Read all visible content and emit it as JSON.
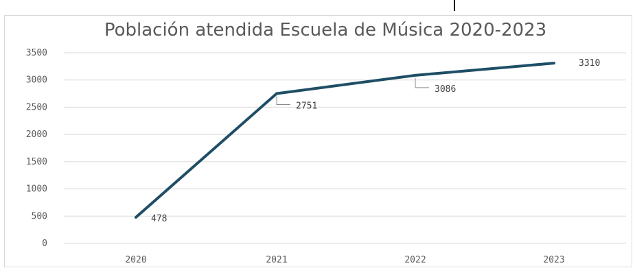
{
  "chart_data": {
    "type": "line",
    "title": "Población atendida Escuela de Música 2020-2023",
    "categories": [
      "2020",
      "2021",
      "2022",
      "2023"
    ],
    "series": [
      {
        "values": [
          478,
          2751,
          3086,
          3310
        ],
        "color": "#1f4e66"
      }
    ],
    "data_labels": [
      "478",
      "2751",
      "3086",
      "3310"
    ],
    "ylim": [
      0,
      3500
    ],
    "yticks": [
      0,
      500,
      1000,
      1500,
      2000,
      2500,
      3000,
      3500
    ],
    "grid": true,
    "legend": "none",
    "gridline_color": "#d9d9d9"
  }
}
